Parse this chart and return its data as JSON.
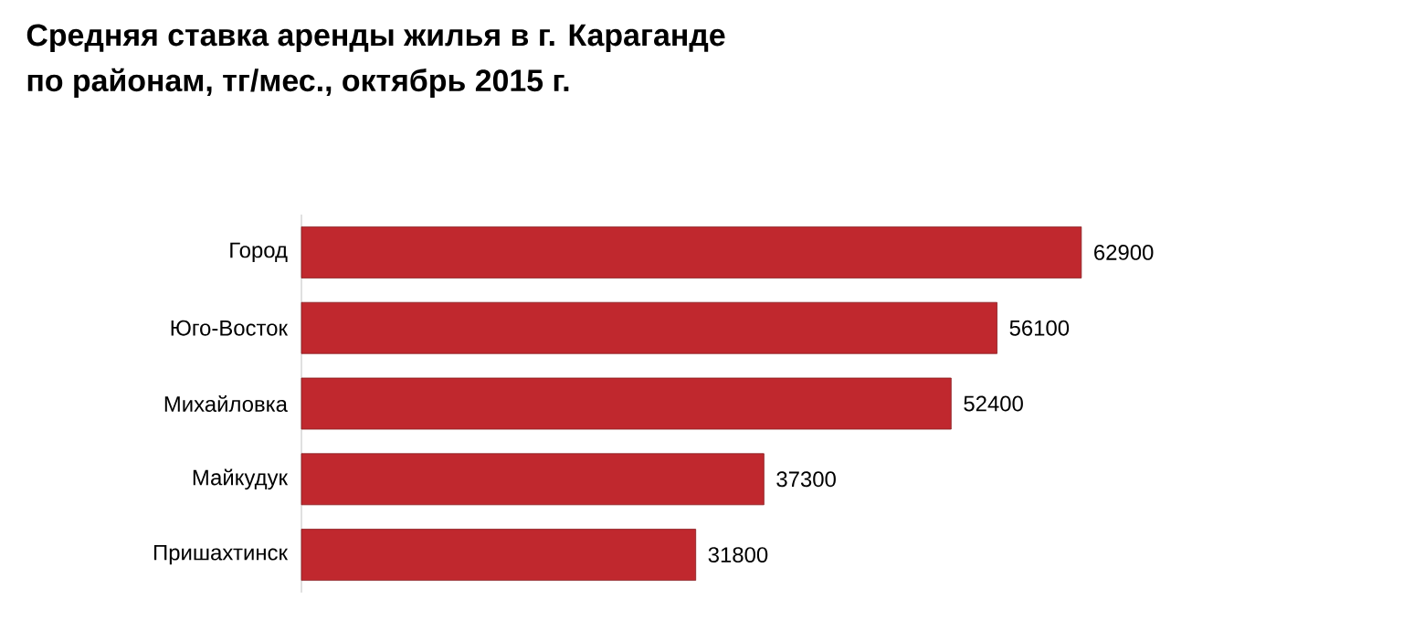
{
  "chart_data": {
    "type": "bar",
    "orientation": "horizontal",
    "title": "Средняя ставка аренды жилья в г. Караганде\nпо районам, тг/мес., октябрь 2015 г.",
    "categories": [
      "Город",
      "Юго-Восток",
      "Михайловка",
      "Майкудук",
      "Пришахтинск"
    ],
    "values": [
      62900,
      56100,
      52400,
      37300,
      31800
    ],
    "color": "#c0282e",
    "data_labels": true
  }
}
